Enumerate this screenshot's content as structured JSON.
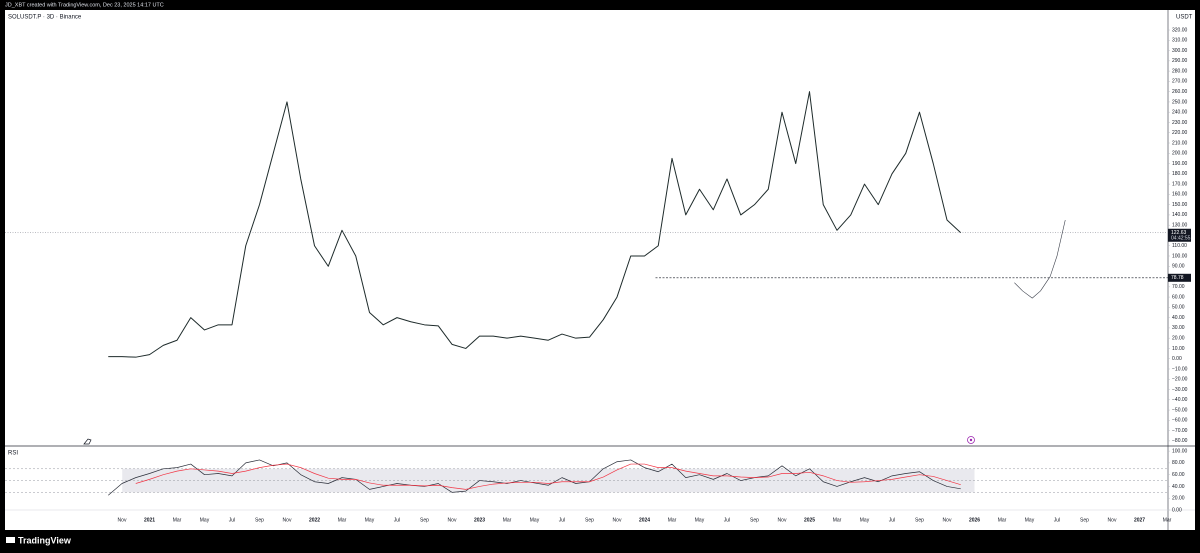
{
  "header": {
    "watermark": "JD_XBT created with TradingView.com, Dec 23, 2025 14:17 UTC",
    "brand": "TradingView"
  },
  "chart_data": {
    "type": "line",
    "title": "SOLUSDT.P · 3D · Binance",
    "unit": "USDT",
    "grid": false,
    "categories": [
      null,
      "Nov",
      null,
      "2021",
      null,
      "Mar",
      null,
      "May",
      null,
      "Jul",
      null,
      "Sep",
      null,
      "Nov",
      null,
      "2022",
      null,
      "Mar",
      null,
      "May",
      null,
      "Jul",
      null,
      "Sep",
      null,
      "Nov",
      null,
      "2023",
      null,
      "Mar",
      null,
      "May",
      null,
      "Jul",
      null,
      "Sep",
      null,
      "Nov",
      null,
      "2024",
      null,
      "Mar",
      null,
      "May",
      null,
      "Jul",
      null,
      "Sep",
      null,
      "Nov",
      null,
      "2025",
      null,
      "Mar",
      null,
      "May",
      null,
      "Jul",
      null,
      "Sep",
      null,
      "Nov",
      null,
      "2026",
      null,
      "Mar",
      null,
      "May",
      null,
      "Jul",
      null,
      "Sep",
      null,
      "Nov",
      null,
      "2027",
      null,
      "Mar"
    ],
    "series": [
      {
        "color": "#1e2b2b",
        "values": [
          2,
          2,
          1.5,
          4,
          13,
          18,
          40,
          28,
          33,
          33,
          110,
          150,
          200,
          250,
          175,
          110,
          90,
          125,
          100,
          45,
          33,
          40,
          36,
          33,
          32,
          14,
          10,
          22,
          22,
          20,
          22,
          20,
          18,
          24,
          20,
          21,
          38,
          60,
          100,
          100,
          110,
          195,
          140,
          165,
          145,
          175,
          140,
          150,
          165,
          240,
          190,
          260,
          150,
          125,
          140,
          170,
          150,
          180,
          200,
          240,
          190,
          135,
          122.63,
          null,
          null,
          null,
          null,
          null,
          null,
          null,
          null,
          null,
          null,
          null,
          null,
          null,
          null,
          null
        ]
      }
    ],
    "ylim": [
      -84,
      339.5
    ],
    "yticks": [
      {
        "value": 320,
        "label": "320.00"
      },
      {
        "value": 310,
        "label": "310.00"
      },
      {
        "value": 300,
        "label": "300.00"
      },
      {
        "value": 290,
        "label": "290.00"
      },
      {
        "value": 280,
        "label": "280.00"
      },
      {
        "value": 270,
        "label": "270.00"
      },
      {
        "value": 260,
        "label": "260.00"
      },
      {
        "value": 250,
        "label": "250.00"
      },
      {
        "value": 240,
        "label": "240.00"
      },
      {
        "value": 230,
        "label": "230.00"
      },
      {
        "value": 220,
        "label": "220.00"
      },
      {
        "value": 210,
        "label": "210.00"
      },
      {
        "value": 200,
        "label": "200.00"
      },
      {
        "value": 190,
        "label": "190.00"
      },
      {
        "value": 180,
        "label": "180.00"
      },
      {
        "value": 170,
        "label": "170.00"
      },
      {
        "value": 160,
        "label": "160.00"
      },
      {
        "value": 150,
        "label": "150.00"
      },
      {
        "value": 140,
        "label": "140.00"
      },
      {
        "value": 130,
        "label": "130.00"
      },
      {
        "value": 120,
        "label": "120.00"
      },
      {
        "value": 110,
        "label": "110.00"
      },
      {
        "value": 100,
        "label": "100.00"
      },
      {
        "value": 90,
        "label": "90.00"
      },
      {
        "value": 80,
        "label": "80.00"
      },
      {
        "value": 70,
        "label": "70.00"
      },
      {
        "value": 60,
        "label": "60.00"
      },
      {
        "value": 50,
        "label": "50.00"
      },
      {
        "value": 40,
        "label": "40.00"
      },
      {
        "value": 30,
        "label": "30.00"
      },
      {
        "value": 20,
        "label": "20.00"
      },
      {
        "value": 10,
        "label": "10.00"
      },
      {
        "value": 0,
        "label": "0.00"
      },
      {
        "value": -10,
        "label": "−10.00"
      },
      {
        "value": -20,
        "label": "−20.00"
      },
      {
        "value": -30,
        "label": "−30.00"
      },
      {
        "value": -40,
        "label": "−40.00"
      },
      {
        "value": -50,
        "label": "−50.00"
      },
      {
        "value": -60,
        "label": "−60.00"
      },
      {
        "value": -70,
        "label": "−70.00"
      },
      {
        "value": -80,
        "label": "−80.00"
      }
    ],
    "price_line": {
      "value": 122.63,
      "label": "122.63",
      "countdown": "04:42:55"
    },
    "level": {
      "value": 78.78,
      "label": "78.78"
    },
    "projection": {
      "color": "#3a3f4a",
      "x": [
        65.9,
        66.5,
        67.2,
        67.8,
        68.5,
        69.0,
        69.6
      ],
      "values": [
        74,
        66,
        59,
        66,
        80,
        100,
        135
      ]
    },
    "rsi": {
      "title": "RSI",
      "series": [
        {
          "color": "#2a2e39",
          "values": [
            25,
            45,
            55,
            62,
            70,
            72,
            78,
            60,
            62,
            58,
            80,
            85,
            75,
            80,
            60,
            48,
            45,
            55,
            52,
            35,
            40,
            45,
            42,
            40,
            45,
            30,
            32,
            50,
            48,
            45,
            50,
            46,
            42,
            55,
            45,
            48,
            70,
            82,
            85,
            72,
            65,
            78,
            55,
            60,
            52,
            62,
            50,
            55,
            58,
            75,
            58,
            70,
            48,
            40,
            48,
            55,
            48,
            58,
            62,
            65,
            50,
            40,
            36,
            null,
            null,
            null,
            null,
            null,
            null,
            null,
            null,
            null,
            null,
            null,
            null,
            null,
            null,
            null
          ]
        },
        {
          "color": "#f23645",
          "values": [
            null,
            null,
            45,
            52,
            60,
            66,
            70,
            68,
            66,
            62,
            66,
            72,
            76,
            78,
            72,
            62,
            54,
            52,
            52,
            46,
            42,
            42,
            42,
            41,
            42,
            38,
            35,
            40,
            44,
            46,
            47,
            47,
            45,
            48,
            48,
            48,
            56,
            68,
            78,
            78,
            72,
            72,
            66,
            62,
            58,
            58,
            56,
            55,
            56,
            62,
            62,
            64,
            58,
            50,
            47,
            48,
            50,
            52,
            56,
            60,
            57,
            50,
            43,
            null,
            null,
            null,
            null,
            null,
            null,
            null,
            null,
            null,
            null,
            null,
            null,
            null,
            null,
            null
          ]
        }
      ],
      "ylim": [
        0,
        107
      ],
      "yticks": [
        {
          "value": 100,
          "label": "100.00"
        },
        {
          "value": 80,
          "label": "80.00"
        },
        {
          "value": 60,
          "label": "60.00"
        },
        {
          "value": 40,
          "label": "40.00"
        },
        {
          "value": 20,
          "label": "20.00"
        },
        {
          "value": 0,
          "label": "0.00"
        }
      ],
      "bands": [
        30,
        50,
        70
      ],
      "band_color": "#e9e9ee"
    }
  }
}
